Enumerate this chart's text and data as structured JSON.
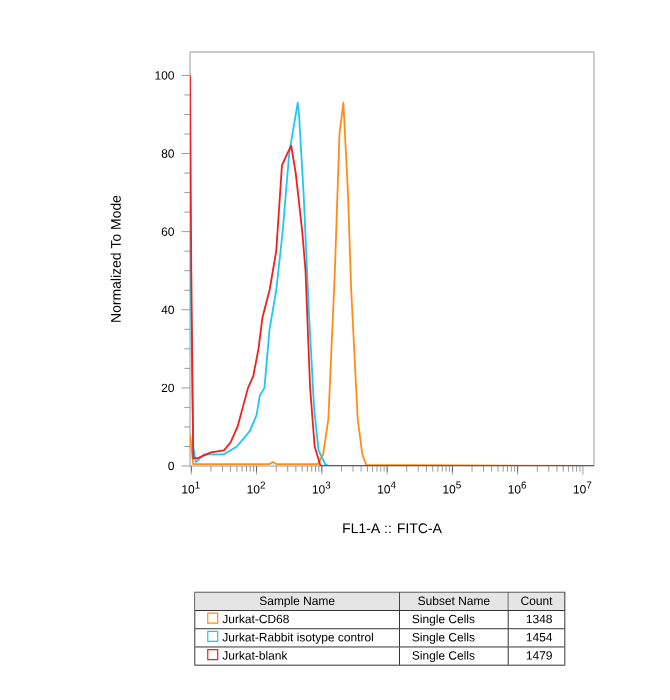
{
  "chart_data": {
    "type": "line",
    "xlabel": "FL1-A :: FITC-A",
    "ylabel": "Normalized To Mode",
    "log": "x",
    "xlim": [
      9.55,
      14800000
    ],
    "ylim": [
      0,
      106
    ],
    "xticks": [
      {
        "value": 10,
        "label": "10$^{1}$"
      },
      {
        "value": 100,
        "label": "10$^{2}$"
      },
      {
        "value": 1000,
        "label": "10$^{3}$"
      },
      {
        "value": 10000,
        "label": "10$^{4}$"
      },
      {
        "value": 100000,
        "label": "10$^{5}$"
      },
      {
        "value": 1000000,
        "label": "10$^{6}$"
      },
      {
        "value": 10000000,
        "label": "10$^{7}$"
      }
    ],
    "yticks": [
      0,
      20,
      40,
      60,
      80,
      100
    ],
    "legend": "bottom",
    "legend_title": "Sample Name",
    "annotations": [
      "Subset Name",
      "Count",
      "Single Cells",
      "1348",
      "Single Cells",
      "1454",
      "Single Cells",
      "1479"
    ],
    "series": [
      {
        "name": "Jurkat-CD68",
        "color": "#ff8c1a",
        "x": [
          9.55,
          10.7,
          31.6,
          158,
          178,
          200,
          871,
          1047,
          1259,
          1585,
          1862,
          2138,
          2512,
          2818,
          3548,
          4169,
          4786,
          14800000
        ],
        "values": [
          8,
          0.5,
          0.5,
          0.5,
          1,
          0.5,
          0.5,
          3,
          12,
          50,
          85,
          93,
          70,
          45,
          12,
          3,
          0.3,
          0
        ]
      },
      {
        "name": "Jurkat-Rabbit isotype control",
        "color": "#1ec8f0",
        "x": [
          9.55,
          10.7,
          11.7,
          15.8,
          31.6,
          50,
          79,
          100,
          112,
          132,
          158,
          200,
          251,
          316,
          427,
          447,
          525,
          631,
          759,
          891,
          1122,
          1259,
          14800000
        ],
        "values": [
          60,
          5,
          1,
          3,
          3,
          5,
          9,
          13,
          18,
          20,
          35,
          45,
          60,
          80,
          93,
          90,
          70,
          40,
          15,
          4,
          0.5,
          0,
          0
        ]
      },
      {
        "name": "Jurkat-blank",
        "color": "#ee2020",
        "x": [
          9.55,
          10,
          10.7,
          12.6,
          20,
          31.6,
          39.8,
          51,
          74,
          89,
          107,
          123,
          158,
          200,
          245,
          295,
          339,
          398,
          501,
          562,
          661,
          776,
          955,
          14800000
        ],
        "values": [
          100,
          50,
          2,
          2,
          3.5,
          4,
          6,
          10,
          20,
          23,
          30,
          38,
          45,
          55,
          77,
          80,
          82,
          75,
          60,
          50,
          20,
          5,
          0,
          0
        ]
      }
    ]
  }
}
